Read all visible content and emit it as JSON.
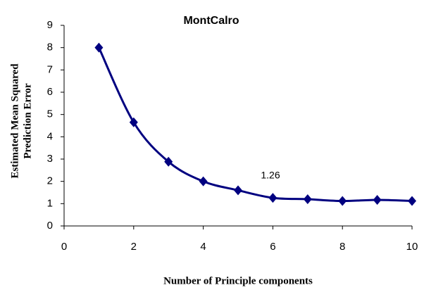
{
  "chart_data": {
    "type": "line",
    "title": "MontCalro",
    "x_label": "Number of Principle components",
    "y_label": [
      "Estimated Mean Squared",
      "Prediction Error"
    ],
    "x": [
      1,
      2,
      3,
      4,
      5,
      6,
      7,
      8,
      9,
      10
    ],
    "series": [
      {
        "color": "#000080",
        "values": [
          8.0,
          4.65,
          2.88,
          2.0,
          1.6,
          1.26,
          1.2,
          1.12,
          1.17,
          1.12
        ]
      }
    ],
    "annotation": "1.26",
    "xlim": [
      0,
      10
    ],
    "xticks": [
      0,
      2,
      4,
      6,
      8,
      10
    ],
    "ylim": [
      0,
      9
    ],
    "yticks": [
      0,
      1,
      2,
      3,
      4,
      5,
      6,
      7,
      8,
      9
    ],
    "grid": false,
    "smooth": true,
    "marker": "diamond"
  }
}
